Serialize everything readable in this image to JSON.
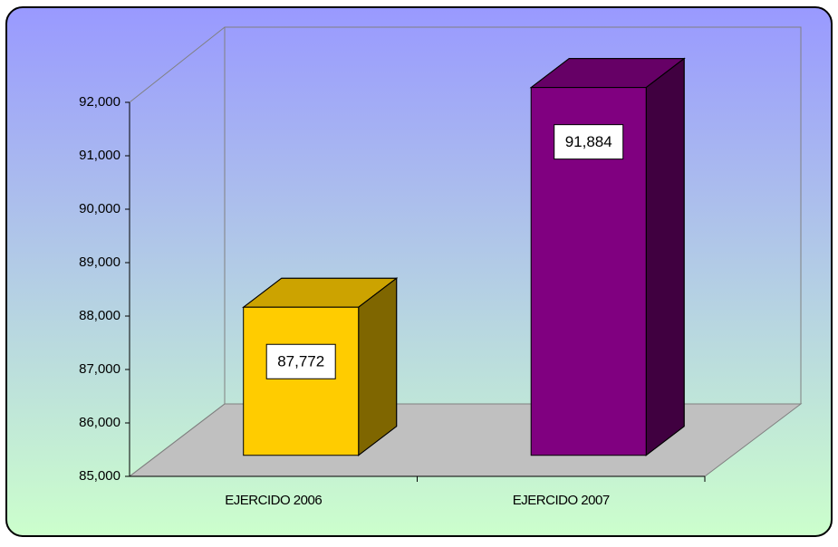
{
  "chart_data": {
    "type": "bar3d",
    "categories": [
      "EJERCIDO 2006",
      "EJERCIDO 2007"
    ],
    "values": [
      87772,
      91884
    ],
    "value_labels": [
      "87,772",
      "91,884"
    ],
    "colors": [
      "#ffcc00",
      "#800080"
    ],
    "ylim": [
      85000,
      92000
    ],
    "yticks": [
      {
        "value": 85000,
        "label": "85,000"
      },
      {
        "value": 86000,
        "label": "86,000"
      },
      {
        "value": 87000,
        "label": "87,000"
      },
      {
        "value": 88000,
        "label": "88,000"
      },
      {
        "value": 89000,
        "label": "89,000"
      },
      {
        "value": 90000,
        "label": "90,000"
      },
      {
        "value": 91000,
        "label": "91,000"
      },
      {
        "value": 92000,
        "label": "92,000"
      }
    ],
    "grid": false
  }
}
